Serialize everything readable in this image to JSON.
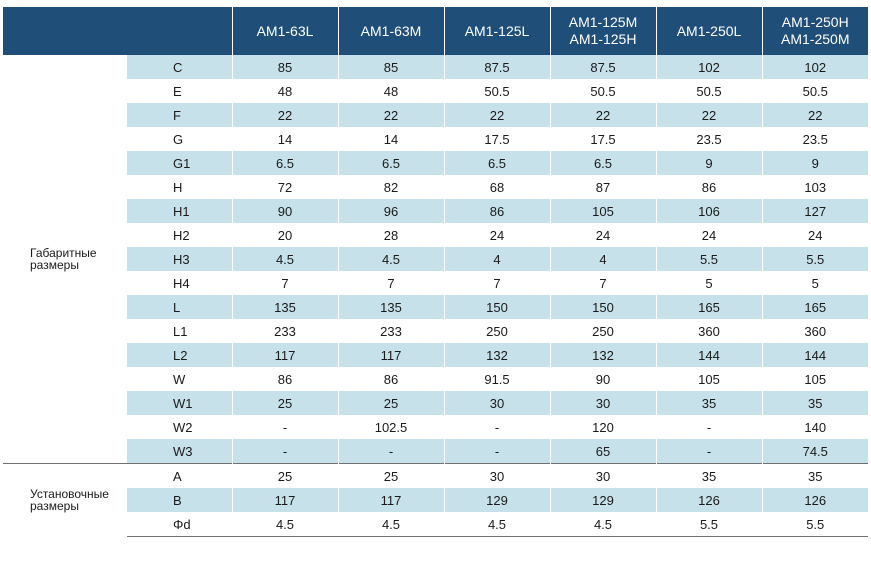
{
  "header": {
    "columns": [
      [
        "AM1-63L"
      ],
      [
        "AM1-63M"
      ],
      [
        "AM1-125L"
      ],
      [
        "AM1-125M",
        "AM1-125H"
      ],
      [
        "AM1-250L"
      ],
      [
        "AM1-250H",
        "AM1-250M"
      ]
    ]
  },
  "groups": [
    {
      "label": [
        "Габаритные",
        "размеры"
      ],
      "rows": [
        {
          "param": "C",
          "values": [
            "85",
            "85",
            "87.5",
            "87.5",
            "102",
            "102"
          ]
        },
        {
          "param": "E",
          "values": [
            "48",
            "48",
            "50.5",
            "50.5",
            "50.5",
            "50.5"
          ]
        },
        {
          "param": "F",
          "values": [
            "22",
            "22",
            "22",
            "22",
            "22",
            "22"
          ]
        },
        {
          "param": "G",
          "values": [
            "14",
            "14",
            "17.5",
            "17.5",
            "23.5",
            "23.5"
          ]
        },
        {
          "param": "G1",
          "values": [
            "6.5",
            "6.5",
            "6.5",
            "6.5",
            "9",
            "9"
          ]
        },
        {
          "param": "H",
          "values": [
            "72",
            "82",
            "68",
            "87",
            "86",
            "103"
          ]
        },
        {
          "param": "H1",
          "values": [
            "90",
            "96",
            "86",
            "105",
            "106",
            "127"
          ]
        },
        {
          "param": "H2",
          "values": [
            "20",
            "28",
            "24",
            "24",
            "24",
            "24"
          ]
        },
        {
          "param": "H3",
          "values": [
            "4.5",
            "4.5",
            "4",
            "4",
            "5.5",
            "5.5"
          ]
        },
        {
          "param": "H4",
          "values": [
            "7",
            "7",
            "7",
            "7",
            "5",
            "5"
          ]
        },
        {
          "param": "L",
          "values": [
            "135",
            "135",
            "150",
            "150",
            "165",
            "165"
          ]
        },
        {
          "param": "L1",
          "values": [
            "233",
            "233",
            "250",
            "250",
            "360",
            "360"
          ]
        },
        {
          "param": "L2",
          "values": [
            "117",
            "117",
            "132",
            "132",
            "144",
            "144"
          ]
        },
        {
          "param": "W",
          "values": [
            "86",
            "86",
            "91.5",
            "90",
            "105",
            "105"
          ]
        },
        {
          "param": "W1",
          "values": [
            "25",
            "25",
            "30",
            "30",
            "35",
            "35"
          ]
        },
        {
          "param": "W2",
          "values": [
            "-",
            "102.5",
            "-",
            "120",
            "-",
            "140"
          ]
        },
        {
          "param": "W3",
          "values": [
            "-",
            "-",
            "-",
            "65",
            "-",
            "74.5"
          ]
        }
      ]
    },
    {
      "label": [
        "Установочные",
        "размеры"
      ],
      "rows": [
        {
          "param": "A",
          "values": [
            "25",
            "25",
            "30",
            "30",
            "35",
            "35"
          ]
        },
        {
          "param": "B",
          "values": [
            "117",
            "117",
            "129",
            "129",
            "126",
            "126"
          ]
        },
        {
          "param": "Φd",
          "values": [
            "4.5",
            "4.5",
            "4.5",
            "4.5",
            "5.5",
            "5.5"
          ]
        }
      ]
    }
  ],
  "colors": {
    "header_bg": "#1f4e79",
    "shade": "#c6e1ea"
  }
}
